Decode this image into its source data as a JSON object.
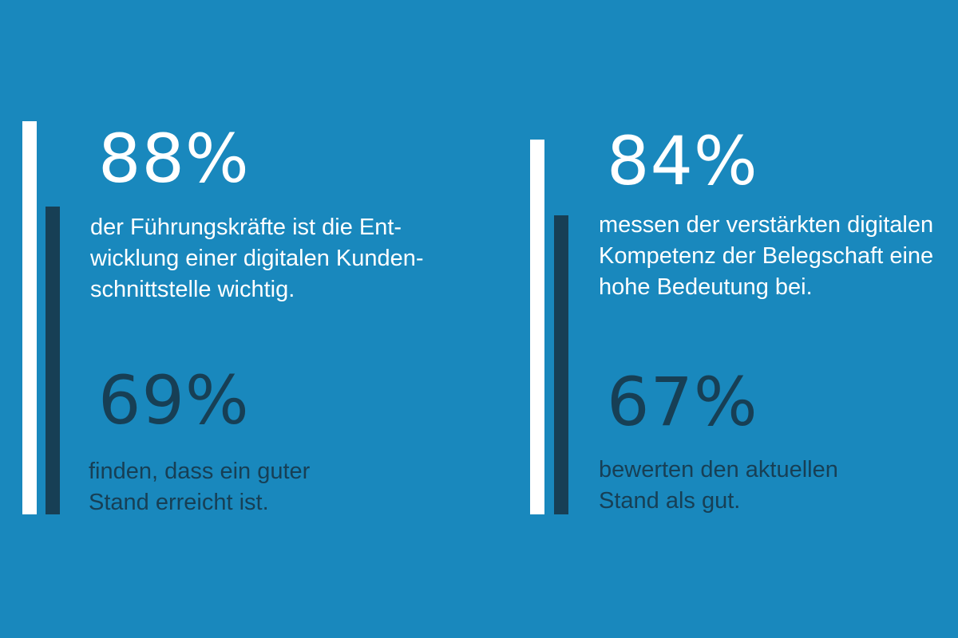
{
  "chart_data": [
    {
      "type": "bar",
      "series": [
        {
          "value": "88%",
          "value_number": 88,
          "color": "#ffffff",
          "lines": [
            "der Führungskräfte ist die Ent-",
            "wicklung einer digitalen Kunden-",
            "schnittstelle wichtig."
          ]
        },
        {
          "value": "69%",
          "value_number": 69,
          "color": "#173f55",
          "lines": [
            "finden, dass ein guter",
            "Stand erreicht ist."
          ]
        }
      ]
    },
    {
      "type": "bar",
      "series": [
        {
          "value": "84%",
          "value_number": 84,
          "color": "#ffffff",
          "lines": [
            "messen der verstärkten digitalen",
            "Kompetenz der Belegschaft eine",
            "hohe Bedeutung bei."
          ]
        },
        {
          "value": "67%",
          "value_number": 67,
          "color": "#173f55",
          "lines": [
            "bewerten den aktuellen",
            "Stand als gut."
          ]
        }
      ]
    }
  ],
  "colors": {
    "background": "#1988bd",
    "primary": "#ffffff",
    "secondary": "#173f55"
  }
}
